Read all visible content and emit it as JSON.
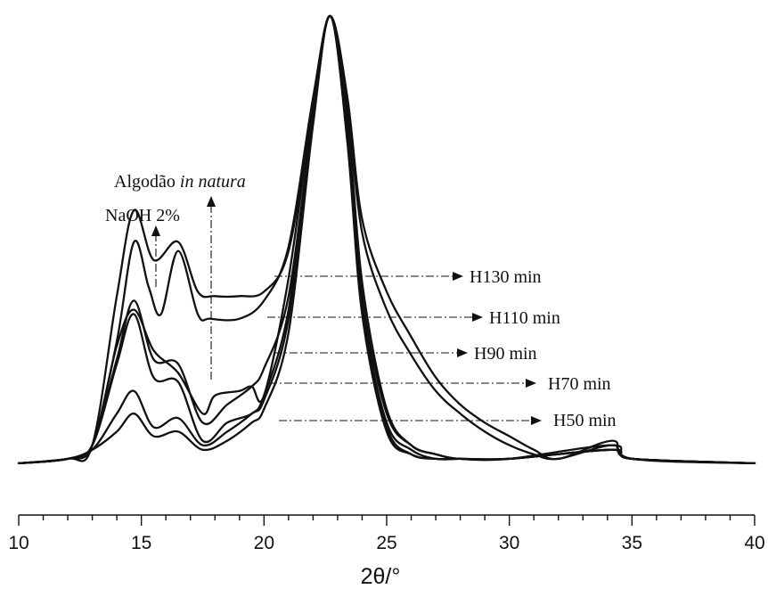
{
  "chart_data": {
    "type": "line",
    "title": "",
    "xlabel": "2θ/°",
    "ylabel": "",
    "xlim": [
      10,
      40
    ],
    "ylim": [
      0,
      1.08
    ],
    "xticks": [
      10,
      15,
      20,
      25,
      30,
      35,
      40
    ],
    "xtick_labels": [
      "10",
      "15",
      "20",
      "25",
      "30",
      "35",
      "40"
    ],
    "grid": false,
    "series": [
      {
        "x": [
          10,
          12,
          13,
          14,
          14.7,
          15.3,
          15.8,
          16.5,
          17.3,
          17.8,
          19,
          20,
          21,
          22,
          22.7,
          23.4,
          24,
          25,
          26,
          27,
          28,
          29,
          30,
          31,
          32,
          34.2,
          35,
          40
        ],
        "y": [
          0.01,
          0.02,
          0.05,
          0.28,
          0.5,
          0.4,
          0.34,
          0.48,
          0.34,
          0.33,
          0.33,
          0.37,
          0.49,
          0.82,
          1.0,
          0.82,
          0.55,
          0.39,
          0.29,
          0.2,
          0.14,
          0.1,
          0.07,
          0.04,
          0.02,
          0.06,
          0.02,
          0.01
        ]
      },
      {
        "x": [
          10,
          12,
          13,
          14,
          14.7,
          15.5,
          16.5,
          17.3,
          18,
          19,
          20,
          21,
          22,
          22.7,
          23.4,
          24,
          25,
          26,
          27,
          28,
          29,
          30,
          31,
          32,
          34.2,
          35,
          40
        ],
        "y": [
          0.01,
          0.02,
          0.05,
          0.38,
          0.57,
          0.46,
          0.5,
          0.39,
          0.38,
          0.38,
          0.39,
          0.48,
          0.8,
          1.0,
          0.8,
          0.52,
          0.35,
          0.25,
          0.17,
          0.12,
          0.08,
          0.05,
          0.03,
          0.02,
          0.05,
          0.02,
          0.01
        ]
      },
      {
        "x": [
          10,
          12,
          13,
          14,
          14.7,
          15.5,
          16.5,
          17.5,
          18.5,
          19.5,
          20,
          21,
          22,
          22.7,
          23.4,
          24,
          25,
          26,
          27,
          28,
          30,
          34.2,
          35,
          40
        ],
        "y": [
          0.01,
          0.02,
          0.05,
          0.24,
          0.37,
          0.24,
          0.23,
          0.1,
          0.14,
          0.18,
          0.22,
          0.38,
          0.78,
          1.0,
          0.75,
          0.38,
          0.12,
          0.05,
          0.03,
          0.02,
          0.02,
          0.04,
          0.02,
          0.01
        ]
      },
      {
        "x": [
          10,
          12,
          13,
          14,
          14.7,
          15.5,
          16.5,
          17.5,
          18.5,
          19.5,
          20,
          21,
          22,
          22.7,
          23.4,
          24,
          25,
          26,
          27,
          28,
          30,
          34.2,
          35,
          40
        ],
        "y": [
          0.01,
          0.02,
          0.05,
          0.23,
          0.34,
          0.2,
          0.19,
          0.06,
          0.1,
          0.12,
          0.16,
          0.35,
          0.77,
          1.0,
          0.74,
          0.36,
          0.1,
          0.04,
          0.02,
          0.02,
          0.02,
          0.04,
          0.02,
          0.01
        ]
      },
      {
        "x": [
          10,
          12,
          13,
          14,
          14.7,
          15.5,
          16.5,
          17.5,
          18.5,
          19.5,
          20,
          21,
          22,
          22.7,
          23.4,
          24,
          25,
          26,
          27,
          28,
          30,
          34.2,
          35,
          40
        ],
        "y": [
          0.01,
          0.02,
          0.04,
          0.12,
          0.17,
          0.09,
          0.11,
          0.05,
          0.08,
          0.12,
          0.15,
          0.33,
          0.77,
          1.0,
          0.73,
          0.35,
          0.09,
          0.03,
          0.02,
          0.02,
          0.02,
          0.04,
          0.02,
          0.01
        ]
      },
      {
        "x": [
          10,
          12,
          13,
          14,
          14.7,
          15.5,
          16.5,
          17.5,
          18,
          19,
          19.5,
          20,
          21,
          22,
          22.7,
          23.4,
          24,
          25,
          26,
          27,
          28,
          30,
          34.2,
          35,
          40
        ],
        "y": [
          0.01,
          0.02,
          0.05,
          0.27,
          0.35,
          0.26,
          0.21,
          0.12,
          0.16,
          0.17,
          0.18,
          0.16,
          0.42,
          0.8,
          1.0,
          0.78,
          0.41,
          0.13,
          0.05,
          0.03,
          0.02,
          0.02,
          0.05,
          0.02,
          0.01
        ]
      },
      {
        "x": [
          10,
          12,
          13,
          14,
          14.7,
          15.5,
          16.5,
          17.5,
          18.5,
          19.5,
          20,
          21,
          22,
          22.7,
          23.4,
          24,
          25,
          26,
          27,
          28,
          30,
          34.2,
          35,
          40
        ],
        "y": [
          0.01,
          0.02,
          0.04,
          0.08,
          0.12,
          0.07,
          0.08,
          0.04,
          0.06,
          0.1,
          0.13,
          0.3,
          0.76,
          1.0,
          0.72,
          0.34,
          0.08,
          0.03,
          0.02,
          0.02,
          0.02,
          0.04,
          0.02,
          0.01
        ]
      }
    ],
    "annotations": {
      "natura": "Algodão",
      "natura_italic": "in natura",
      "naoh": "NaOH 2%",
      "h130": "H130 min",
      "h110": "H110 min",
      "h90": "H90 min",
      "h70": "H70 min",
      "h50": "H50 min"
    }
  }
}
